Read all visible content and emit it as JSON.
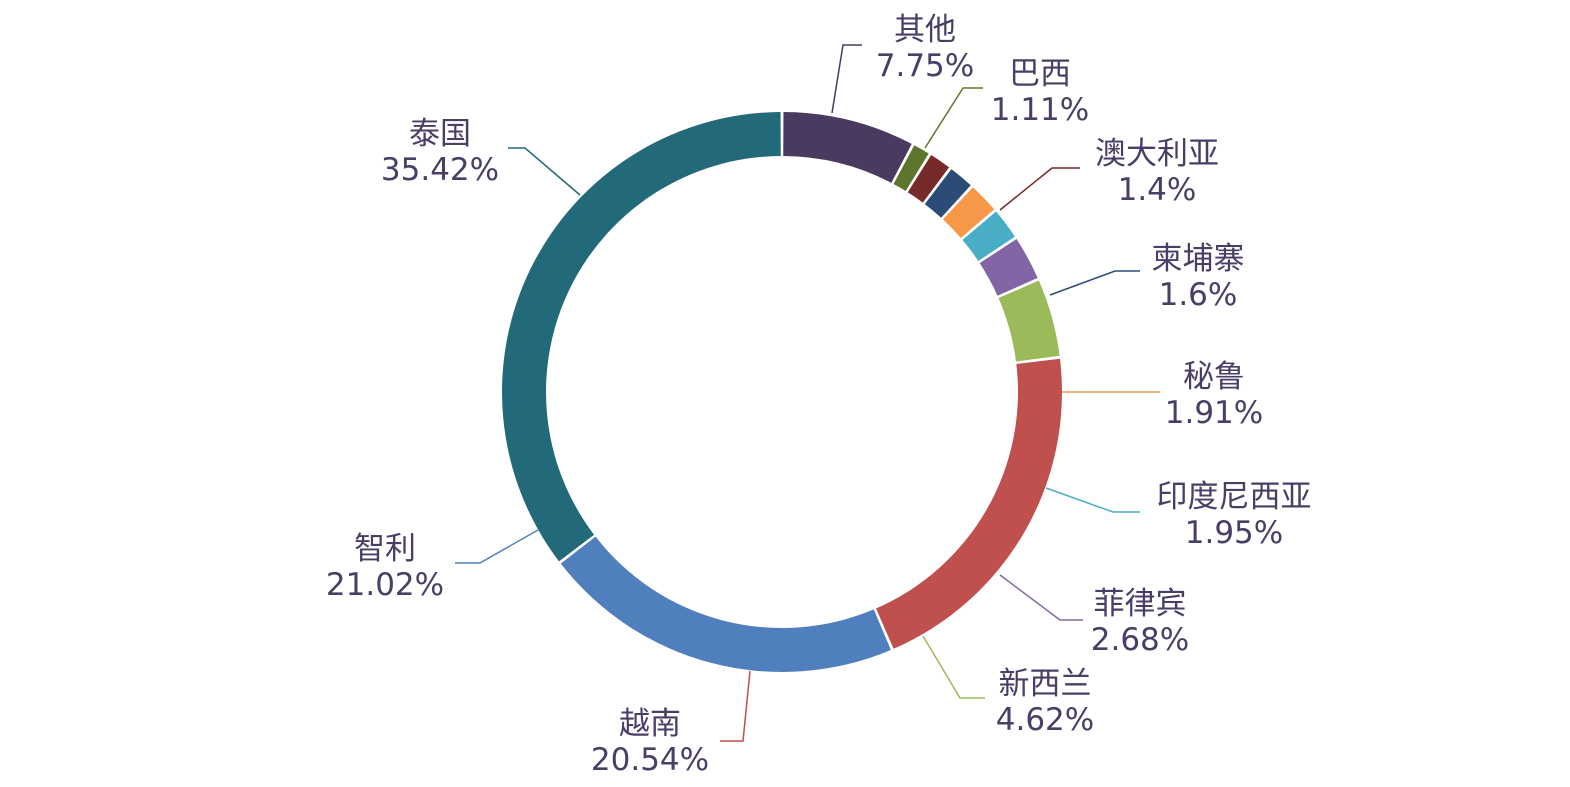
{
  "chart_data": {
    "type": "pie",
    "variant": "donut",
    "title": "",
    "legend": "none",
    "slices": [
      {
        "label": "其他",
        "value": 7.75,
        "value_text": "7.75%",
        "color": "#4b3a5f"
      },
      {
        "label": "巴西",
        "value": 1.11,
        "value_text": "1.11%",
        "color": "#5e752d"
      },
      {
        "label": "澳大利亚",
        "value": 1.4,
        "value_text": "1.4%",
        "color": "#772a2a"
      },
      {
        "label": "柬埔寨",
        "value": 1.6,
        "value_text": "1.6%",
        "color": "#2b4c77"
      },
      {
        "label": "秘鲁",
        "value": 1.91,
        "value_text": "1.91%",
        "color": "#f69848"
      },
      {
        "label": "印度尼西亚",
        "value": 1.95,
        "value_text": "1.95%",
        "color": "#4aadc6"
      },
      {
        "label": "菲律宾",
        "value": 2.68,
        "value_text": "2.68%",
        "color": "#8265a5"
      },
      {
        "label": "新西兰",
        "value": 4.62,
        "value_text": "4.62%",
        "color": "#9bba59"
      },
      {
        "label": "越南",
        "value": 20.54,
        "value_text": "20.54%",
        "color": "#bf504d"
      },
      {
        "label": "智利",
        "value": 21.02,
        "value_text": "21.02%",
        "color": "#4f80bd"
      },
      {
        "label": "泰国",
        "value": 35.42,
        "value_text": "35.42%",
        "color": "#226979"
      }
    ]
  }
}
